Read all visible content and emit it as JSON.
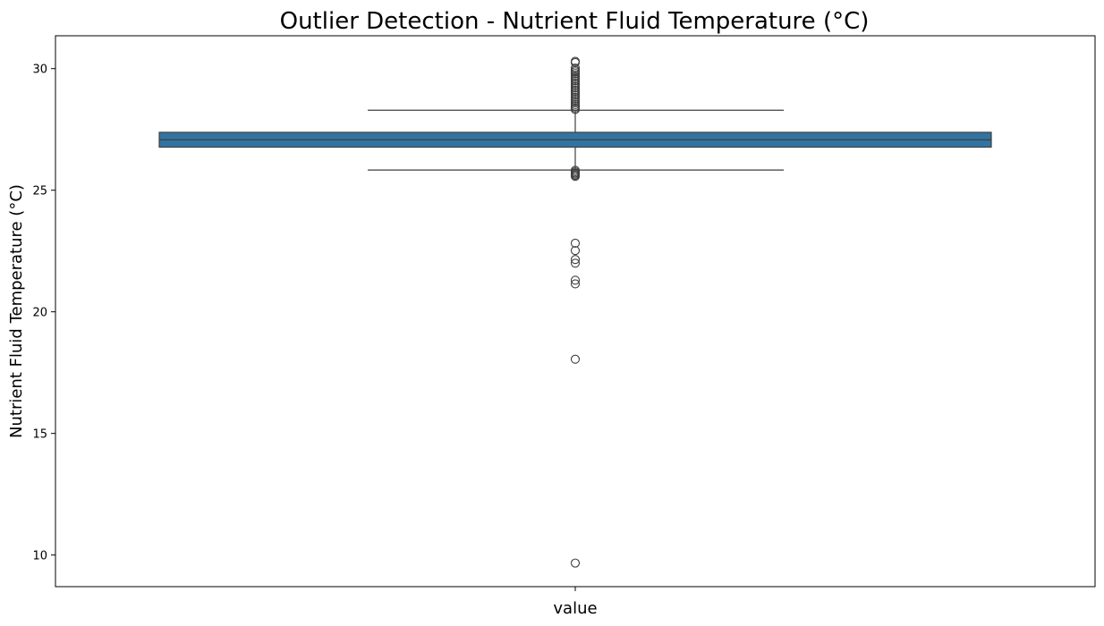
{
  "chart_data": {
    "type": "box",
    "title": "Outlier Detection - Nutrient Fluid Temperature (°C)",
    "xlabel": "",
    "ylabel": "Nutrient Fluid Temperature (°C)",
    "category": "value",
    "ylim": [
      8.7,
      31.35
    ],
    "yticks": [
      10,
      15,
      20,
      25,
      30
    ],
    "box": {
      "q1": 26.77,
      "median": 27.07,
      "q3": 27.38,
      "whisker_low": 25.83,
      "whisker_high": 28.29
    },
    "outliers_high": [
      28.32,
      28.38,
      28.45,
      28.52,
      28.6,
      28.68,
      28.75,
      28.82,
      28.9,
      28.97,
      29.05,
      29.12,
      29.2,
      29.27,
      29.35,
      29.42,
      29.5,
      29.57,
      29.65,
      29.72,
      29.8,
      29.87,
      29.93,
      30.02,
      30.25,
      30.3
    ],
    "outliers_low": [
      25.82,
      25.76,
      25.71,
      25.66,
      25.61,
      25.57,
      22.82,
      22.52,
      22.15,
      22.0,
      21.3,
      21.15,
      18.05,
      9.67
    ],
    "colors": {
      "box_fill": "#3274a1",
      "line": "#3f3f3f"
    }
  }
}
